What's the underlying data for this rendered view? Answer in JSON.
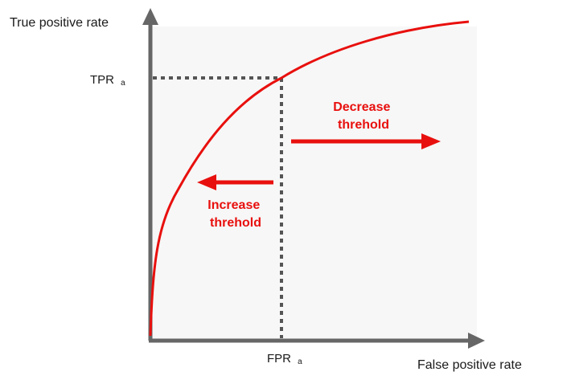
{
  "axes": {
    "y_title": "True positive rate",
    "x_title": "False positive rate"
  },
  "markers": {
    "tpr_main": "TPR",
    "tpr_sub": "a",
    "fpr_main": "FPR",
    "fpr_sub": "a"
  },
  "annotations": {
    "decrease_line1": "Decrease",
    "decrease_line2": "threhold",
    "increase_line1": "Increase",
    "increase_line2": "threhold"
  },
  "colors": {
    "accent": "#e8100e",
    "axis": "#666666",
    "plot_background": "#f7f7f7",
    "dotted_guide": "#555555"
  },
  "icons": [
    "arrow-right-icon",
    "arrow-left-icon"
  ]
}
